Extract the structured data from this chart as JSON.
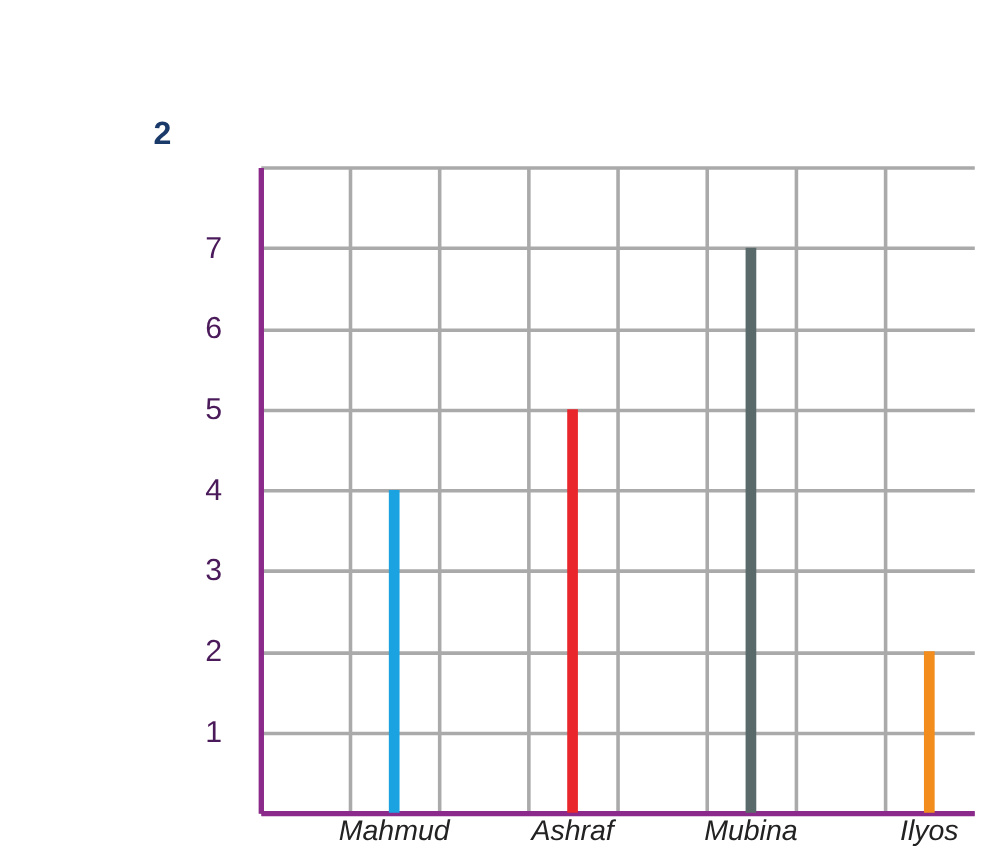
{
  "chart_data": {
    "type": "bar",
    "categories": [
      null,
      "Mahmud",
      null,
      "Ashraf",
      null,
      "Mubina",
      null,
      "Ilyos"
    ],
    "values": [
      null,
      4,
      null,
      5,
      null,
      7,
      null,
      2
    ],
    "colors": [
      "#888888",
      "#1aa3e0",
      "#888888",
      "#e8262b",
      "#888888",
      "#5a6a6a",
      "#888888",
      "#f28c1c"
    ],
    "ylim": [
      0,
      8
    ],
    "yticks": [
      {
        "value": 0,
        "label": null
      },
      1,
      2,
      3,
      4,
      5,
      6,
      7,
      {
        "value": 8,
        "label": null
      }
    ],
    "grid": true,
    "annotations": [
      "2"
    ]
  }
}
